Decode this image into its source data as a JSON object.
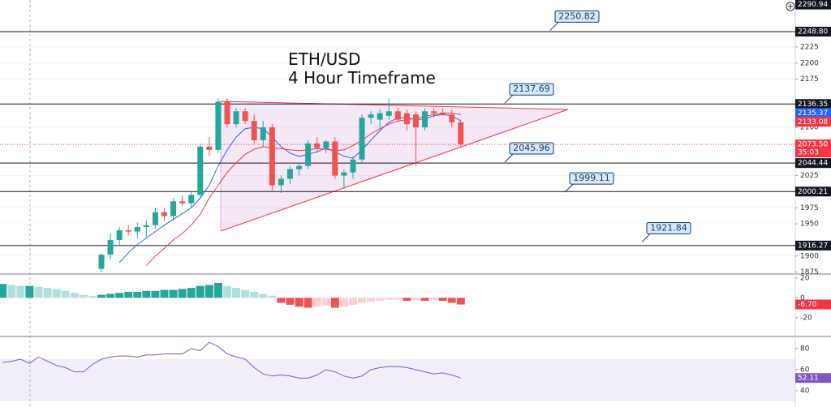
{
  "chart_data": [
    {
      "type": "candlestick",
      "title": "ETH/USD",
      "subtitle": "4 Hour Timeframe",
      "ylim": [
        1872,
        2298
      ],
      "yticks": [
        1875,
        1900,
        1950,
        1975,
        2025,
        2100,
        2175,
        2200,
        2225
      ],
      "grid": true,
      "up_color": "#26a69a",
      "down_color": "#ef5350",
      "open": [
        1880,
        1902,
        1925,
        1940,
        1938,
        1945,
        1948,
        1968,
        1962,
        1985,
        1982,
        1995,
        2070,
        2065,
        2140,
        2105,
        2125,
        2110,
        2080,
        2100,
        2010,
        2020,
        2035,
        2040,
        2075,
        2068,
        2078,
        2025,
        2030,
        2050,
        2115,
        2112,
        2118,
        2125,
        2122,
        2120,
        2100,
        2125,
        2123,
        2120,
        2108
      ],
      "high": [
        1905,
        1935,
        1945,
        1948,
        1952,
        1955,
        1975,
        1975,
        1990,
        1995,
        2000,
        2075,
        2085,
        2145,
        2145,
        2130,
        2130,
        2120,
        2110,
        2105,
        2025,
        2040,
        2045,
        2080,
        2085,
        2080,
        2085,
        2035,
        2055,
        2120,
        2125,
        2128,
        2145,
        2130,
        2128,
        2125,
        2130,
        2130,
        2130,
        2128,
        2112
      ],
      "low": [
        1875,
        1895,
        1915,
        1932,
        1928,
        1930,
        1942,
        1955,
        1955,
        1978,
        1975,
        1990,
        2055,
        2060,
        2100,
        2100,
        2105,
        2075,
        2070,
        2000,
        1998,
        2012,
        2025,
        2035,
        2060,
        2060,
        2020,
        2005,
        2020,
        2045,
        2105,
        2100,
        2112,
        2108,
        2095,
        2040,
        2095,
        2115,
        2118,
        2100,
        2070
      ],
      "close": [
        1902,
        1925,
        1940,
        1938,
        1945,
        1948,
        1968,
        1962,
        1985,
        1982,
        1995,
        2070,
        2065,
        2140,
        2105,
        2125,
        2110,
        2080,
        2100,
        2010,
        2020,
        2035,
        2040,
        2075,
        2068,
        2078,
        2025,
        2030,
        2050,
        2115,
        2120,
        2122,
        2125,
        2112,
        2105,
        2100,
        2125,
        2122,
        2120,
        2108,
        2073.5
      ],
      "moving_averages": [
        {
          "color": "#2962ff",
          "values": [
            null,
            null,
            1890,
            1905,
            1918,
            1928,
            1938,
            1948,
            1957,
            1966,
            1975,
            1990,
            2010,
            2040,
            2065,
            2085,
            2098,
            2100,
            2098,
            2085,
            2070,
            2060,
            2055,
            2058,
            2062,
            2068,
            2062,
            2055,
            2052,
            2065,
            2080,
            2095,
            2108,
            2115,
            2115,
            2112,
            2113,
            2118,
            2120,
            2118,
            2110
          ]
        },
        {
          "color": "#f23645",
          "values": [
            null,
            null,
            null,
            null,
            null,
            1885,
            1900,
            1912,
            1925,
            1935,
            1948,
            1965,
            1990,
            2010,
            2030,
            2045,
            2058,
            2066,
            2070,
            2068,
            2067,
            2065,
            2064,
            2065,
            2067,
            2066,
            2064,
            2065,
            2072,
            2080,
            2090,
            2098,
            2105,
            2110,
            2112,
            2114,
            2117,
            2120,
            2122,
            2122,
            2120
          ]
        }
      ],
      "levels": [
        {
          "value": 2248.8,
          "label": "2248.80"
        },
        2136.35,
        2044.44,
        2000.21,
        1916.27
      ],
      "callouts": [
        2250.82,
        2137.69,
        2045.96,
        1999.11,
        1921.84
      ],
      "price_tags": [
        {
          "value": 2290.94,
          "color": "#131722"
        },
        {
          "value": 2135.37,
          "color": "#2962ff"
        },
        {
          "value": 2133.08,
          "color": "#f23645"
        }
      ],
      "last_price": {
        "value": 2073.5,
        "label": "2073.50",
        "countdown": "35:03",
        "color": "#f23645"
      }
    },
    {
      "type": "bar",
      "ylim": [
        -39,
        24
      ],
      "yticks": [
        20,
        0,
        -20
      ],
      "values": [
        14,
        13,
        12,
        12,
        11,
        10,
        9,
        7,
        5,
        3,
        2,
        3,
        4,
        5,
        6,
        6,
        7,
        7,
        8,
        8,
        9,
        10,
        12,
        13,
        15,
        12,
        10,
        8,
        6,
        4,
        2,
        -5,
        -7,
        -9,
        -10,
        -9,
        -8,
        -10,
        -9,
        -7,
        -5,
        -4,
        -3,
        -2,
        -2,
        -3,
        -2,
        -3,
        -2,
        -3,
        -5,
        -6.7
      ],
      "value_labels": [
        null,
        null,
        null,
        null,
        null,
        null,
        null,
        null,
        null,
        null,
        null,
        null,
        null,
        null,
        null,
        null,
        null,
        null,
        null,
        null,
        null,
        null,
        null,
        null,
        null,
        null,
        null,
        null,
        null,
        null,
        null,
        null,
        null,
        null,
        null,
        null,
        null,
        null,
        null,
        null,
        null,
        null,
        null,
        null,
        null,
        null,
        null,
        null,
        null,
        null,
        null,
        "-6.70"
      ],
      "tag_color": "#f23645"
    },
    {
      "type": "line",
      "ylim": [
        24.6,
        91.5
      ],
      "yticks": [
        80,
        60,
        40
      ],
      "band": [
        30,
        70
      ],
      "color": "#7e57c2",
      "values": [
        67,
        68,
        70,
        66,
        72,
        68,
        64,
        62,
        58,
        58,
        65,
        70,
        72,
        73,
        73,
        72,
        74,
        74,
        75,
        75,
        75,
        80,
        78,
        86,
        82,
        75,
        72,
        70,
        62,
        56,
        54,
        55,
        54,
        52,
        52,
        55,
        60,
        58,
        54,
        52,
        54,
        60,
        62,
        63,
        63,
        62,
        60,
        58,
        56,
        57,
        55,
        52.11
      ]
    }
  ]
}
